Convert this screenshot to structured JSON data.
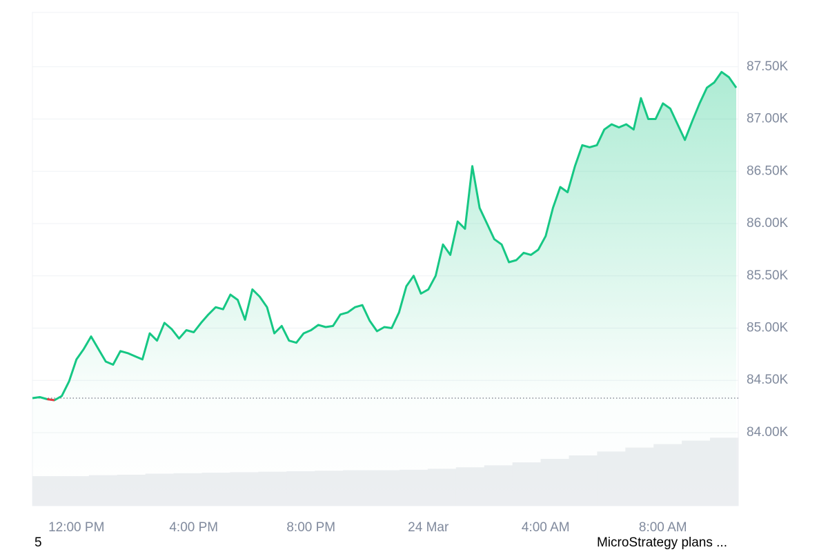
{
  "chart_data": {
    "type": "line",
    "categories": [
      null,
      null,
      null,
      null,
      null,
      null,
      "12:00 PM",
      null,
      null,
      null,
      null,
      null,
      null,
      null,
      null,
      null,
      null,
      null,
      null,
      null,
      null,
      null,
      "4:00 PM",
      null,
      null,
      null,
      null,
      null,
      null,
      null,
      null,
      null,
      null,
      null,
      null,
      null,
      null,
      null,
      "8:00 PM",
      null,
      null,
      null,
      null,
      null,
      null,
      null,
      null,
      null,
      null,
      null,
      null,
      null,
      null,
      null,
      "24 Mar",
      null,
      null,
      null,
      null,
      null,
      null,
      null,
      null,
      null,
      null,
      null,
      null,
      null,
      null,
      null,
      "4:00 AM",
      null,
      null,
      null,
      null,
      null,
      null,
      null,
      null,
      null,
      null,
      null,
      null,
      null,
      null,
      null,
      "8:00 AM",
      null,
      null,
      null,
      null,
      null,
      null,
      null,
      null,
      null,
      null
    ],
    "values": [
      84330,
      84340,
      84320,
      84310,
      84350,
      84490,
      84700,
      84800,
      84920,
      84800,
      84680,
      84650,
      84780,
      84760,
      84730,
      84700,
      84950,
      84880,
      85050,
      84990,
      84900,
      84980,
      84960,
      85050,
      85130,
      85200,
      85180,
      85320,
      85270,
      85080,
      85370,
      85300,
      85200,
      84950,
      85020,
      84880,
      84860,
      84950,
      84980,
      85030,
      85010,
      85020,
      85130,
      85150,
      85200,
      85220,
      85070,
      84970,
      85010,
      85000,
      85150,
      85400,
      85500,
      85330,
      85370,
      85500,
      85800,
      85700,
      86020,
      85950,
      86550,
      86150,
      86000,
      85850,
      85800,
      85630,
      85650,
      85720,
      85700,
      85750,
      85880,
      86150,
      86350,
      86300,
      86550,
      86750,
      86730,
      86750,
      86900,
      86950,
      86920,
      86950,
      86900,
      87200,
      87000,
      87000,
      87150,
      87100,
      86950,
      86800,
      86980,
      87150,
      87300,
      87350,
      87450,
      87400,
      87300
    ],
    "baseline": 84330,
    "color": "#16c784",
    "down_color": "#ea3943",
    "ylim": [
      83300,
      88020
    ],
    "yticks": [
      {
        "value": 84000,
        "label": "84.00K"
      },
      {
        "value": 84500,
        "label": "84.50K"
      },
      {
        "value": 85000,
        "label": "85.00K"
      },
      {
        "value": 85500,
        "label": "85.50K"
      },
      {
        "value": 86000,
        "label": "86.00K"
      },
      {
        "value": 86500,
        "label": "86.50K"
      },
      {
        "value": 87000,
        "label": "87.00K"
      },
      {
        "value": 87500,
        "label": "87.50K"
      }
    ],
    "grid": true,
    "volume": {
      "values": [
        60,
        60,
        62,
        63,
        65,
        66,
        67,
        68,
        69,
        70,
        71,
        72,
        72,
        73,
        75,
        78,
        82,
        88,
        95,
        102,
        110,
        118,
        125,
        132,
        138
      ],
      "ylim": [
        0,
        1000
      ],
      "color": "#eceef1"
    },
    "annotations": [
      "5",
      "MicroStrategy plans ..."
    ]
  }
}
